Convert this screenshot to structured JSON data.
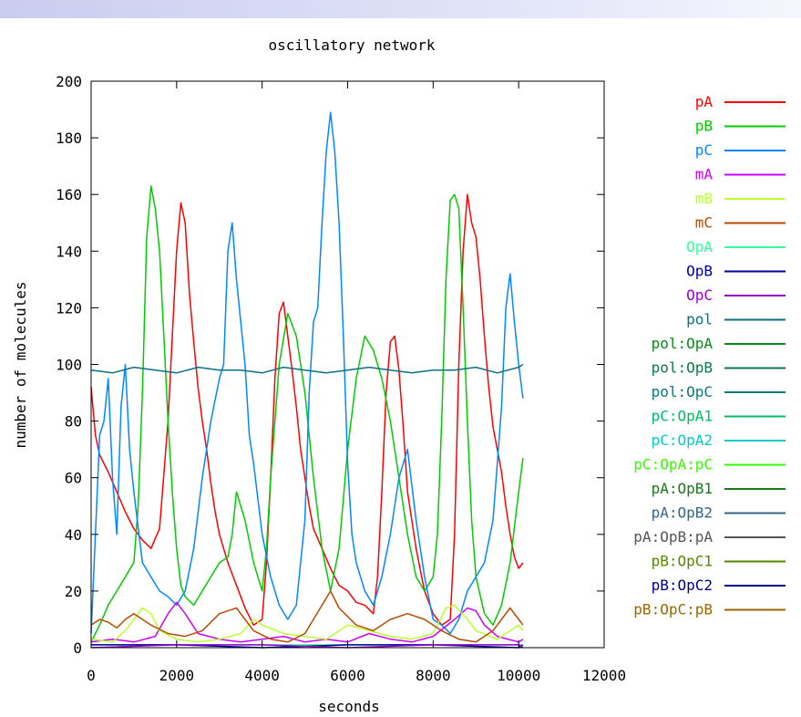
{
  "chart_data": {
    "type": "line",
    "title": "oscillatory network",
    "xlabel": "seconds",
    "ylabel": "number of molecules",
    "xlim": [
      0,
      12000
    ],
    "ylim": [
      0,
      200
    ],
    "xticks": [
      0,
      2000,
      4000,
      6000,
      8000,
      10000,
      12000
    ],
    "yticks": [
      0,
      20,
      40,
      60,
      80,
      100,
      120,
      140,
      160,
      180,
      200
    ],
    "grid": false,
    "legend_position": "right",
    "series": [
      {
        "name": "pA",
        "color": "#ff0000",
        "x": [
          0,
          100,
          200,
          400,
          600,
          800,
          1000,
          1200,
          1400,
          1600,
          1800,
          1900,
          2000,
          2100,
          2200,
          2300,
          2400,
          2500,
          2600,
          2700,
          2800,
          2900,
          3000,
          3100,
          3200,
          3400,
          3600,
          3800,
          4000,
          4100,
          4200,
          4300,
          4400,
          4500,
          4600,
          4700,
          4800,
          4900,
          5000,
          5100,
          5200,
          5400,
          5600,
          5800,
          6000,
          6200,
          6400,
          6600,
          6700,
          6800,
          6900,
          7000,
          7100,
          7200,
          7300,
          7400,
          7600,
          7800,
          8000,
          8200,
          8400,
          8500,
          8600,
          8700,
          8800,
          8900,
          9000,
          9100,
          9200,
          9300,
          9400,
          9500,
          9600,
          9700,
          9800,
          9900,
          10000,
          10100
        ],
        "y": [
          92,
          75,
          68,
          62,
          55,
          48,
          42,
          38,
          35,
          42,
          80,
          110,
          140,
          157,
          150,
          125,
          108,
          92,
          80,
          70,
          58,
          48,
          40,
          35,
          30,
          22,
          14,
          8,
          10,
          30,
          60,
          95,
          118,
          122,
          110,
          98,
          85,
          70,
          60,
          50,
          42,
          35,
          28,
          22,
          20,
          16,
          15,
          12,
          25,
          55,
          90,
          108,
          110,
          98,
          78,
          55,
          35,
          20,
          12,
          8,
          10,
          40,
          100,
          140,
          160,
          150,
          145,
          130,
          110,
          92,
          78,
          70,
          62,
          50,
          40,
          32,
          28,
          30
        ]
      },
      {
        "name": "pB",
        "color": "#00cc00",
        "x": [
          0,
          200,
          400,
          600,
          800,
          1000,
          1100,
          1200,
          1300,
          1400,
          1500,
          1600,
          1700,
          1800,
          1900,
          2000,
          2100,
          2200,
          2400,
          2600,
          2800,
          3000,
          3200,
          3300,
          3400,
          3600,
          3800,
          4000,
          4100,
          4200,
          4400,
          4600,
          4800,
          5000,
          5200,
          5400,
          5600,
          5800,
          6000,
          6200,
          6400,
          6600,
          6800,
          7000,
          7200,
          7400,
          7600,
          7800,
          8000,
          8100,
          8200,
          8300,
          8400,
          8500,
          8600,
          8700,
          8800,
          8900,
          9000,
          9200,
          9400,
          9600,
          9800,
          10000,
          10100
        ],
        "y": [
          2,
          8,
          15,
          20,
          25,
          30,
          50,
          90,
          145,
          163,
          155,
          140,
          110,
          80,
          55,
          35,
          22,
          18,
          15,
          20,
          25,
          30,
          32,
          40,
          55,
          45,
          30,
          20,
          35,
          60,
          100,
          118,
          110,
          90,
          60,
          35,
          20,
          35,
          70,
          95,
          110,
          105,
          95,
          80,
          60,
          40,
          25,
          20,
          25,
          40,
          80,
          130,
          158,
          160,
          155,
          120,
          80,
          45,
          25,
          12,
          8,
          15,
          30,
          55,
          67
        ]
      },
      {
        "name": "pC",
        "color": "#0088ff",
        "x": [
          0,
          100,
          200,
          300,
          400,
          500,
          600,
          700,
          800,
          900,
          1000,
          1200,
          1400,
          1600,
          1800,
          2000,
          2200,
          2400,
          2600,
          2800,
          3000,
          3100,
          3200,
          3300,
          3400,
          3500,
          3600,
          3700,
          3800,
          4000,
          4200,
          4400,
          4600,
          4800,
          5000,
          5100,
          5200,
          5300,
          5400,
          5500,
          5600,
          5700,
          5800,
          5900,
          6000,
          6100,
          6200,
          6400,
          6600,
          6800,
          7000,
          7200,
          7400,
          7600,
          7800,
          8000,
          8200,
          8400,
          8600,
          8800,
          9000,
          9200,
          9400,
          9600,
          9700,
          9800,
          9900,
          10000,
          10100
        ],
        "y": [
          5,
          40,
          75,
          80,
          95,
          60,
          40,
          85,
          100,
          70,
          55,
          30,
          25,
          20,
          18,
          15,
          20,
          35,
          60,
          80,
          95,
          100,
          140,
          150,
          130,
          115,
          100,
          75,
          65,
          40,
          25,
          15,
          10,
          15,
          45,
          90,
          115,
          120,
          150,
          175,
          189,
          175,
          150,
          110,
          65,
          40,
          30,
          20,
          15,
          25,
          40,
          60,
          70,
          45,
          25,
          10,
          8,
          5,
          10,
          20,
          25,
          30,
          45,
          85,
          120,
          132,
          115,
          100,
          88
        ]
      },
      {
        "name": "pol",
        "color": "#0b6f85",
        "x": [
          0,
          500,
          1000,
          1500,
          2000,
          2500,
          3000,
          3500,
          4000,
          4500,
          5000,
          5500,
          6000,
          6500,
          7000,
          7500,
          8000,
          8500,
          9000,
          9500,
          10000,
          10100
        ],
        "y": [
          98,
          97,
          99,
          98,
          97,
          99,
          98,
          98,
          97,
          99,
          98,
          97,
          98,
          99,
          98,
          97,
          98,
          98,
          99,
          97,
          99,
          100
        ]
      },
      {
        "name": "mA",
        "color": "#cc00ff",
        "x": [
          0,
          500,
          1000,
          1500,
          1800,
          2000,
          2200,
          2500,
          3000,
          3500,
          4000,
          4500,
          5000,
          5500,
          6000,
          6500,
          7000,
          7500,
          8000,
          8500,
          8800,
          9000,
          9200,
          9500,
          10000,
          10100
        ],
        "y": [
          2,
          3,
          2,
          4,
          12,
          16,
          12,
          5,
          3,
          2,
          3,
          4,
          2,
          3,
          2,
          5,
          3,
          2,
          4,
          10,
          14,
          13,
          8,
          4,
          2,
          3
        ]
      },
      {
        "name": "mB",
        "color": "#bbff33",
        "x": [
          0,
          500,
          800,
          1000,
          1200,
          1400,
          1600,
          2000,
          2500,
          3000,
          3500,
          3800,
          4000,
          4500,
          5000,
          5500,
          6000,
          6500,
          7000,
          7500,
          8000,
          8300,
          8500,
          8800,
          9000,
          9500,
          10000,
          10100
        ],
        "y": [
          3,
          2,
          6,
          10,
          14,
          12,
          6,
          3,
          2,
          3,
          5,
          10,
          8,
          5,
          4,
          3,
          8,
          6,
          4,
          3,
          5,
          14,
          15,
          10,
          6,
          3,
          8,
          6
        ]
      },
      {
        "name": "mC",
        "color": "#b84a00",
        "x": [
          0,
          200,
          400,
          600,
          800,
          1000,
          1400,
          1800,
          2200,
          2600,
          3000,
          3400,
          3600,
          3800,
          4200,
          4600,
          5000,
          5400,
          5600,
          5800,
          6200,
          6600,
          7000,
          7400,
          7800,
          8200,
          8600,
          9000,
          9400,
          9800,
          10000,
          10100
        ],
        "y": [
          8,
          10,
          9,
          7,
          10,
          12,
          8,
          5,
          4,
          6,
          12,
          14,
          10,
          6,
          3,
          2,
          5,
          15,
          20,
          14,
          8,
          6,
          10,
          12,
          10,
          6,
          3,
          2,
          6,
          14,
          10,
          8
        ]
      },
      {
        "name": "OpA",
        "color": "#33ff99",
        "x": [
          0,
          2000,
          4000,
          6000,
          8000,
          10000,
          10100
        ],
        "y": [
          1,
          1,
          1,
          1,
          1,
          1,
          1
        ]
      },
      {
        "name": "OpB",
        "color": "#000099",
        "x": [
          0,
          2000,
          4000,
          6000,
          8000,
          10000,
          10100
        ],
        "y": [
          1,
          1,
          0,
          1,
          1,
          0,
          1
        ]
      },
      {
        "name": "OpC",
        "color": "#9900cc",
        "x": [
          0,
          2000,
          4000,
          6000,
          8000,
          10000,
          10100
        ],
        "y": [
          0,
          1,
          1,
          0,
          1,
          1,
          0
        ]
      }
    ],
    "legend": [
      {
        "name": "pA",
        "color": "#ff0000"
      },
      {
        "name": "pB",
        "color": "#00cc00"
      },
      {
        "name": "pC",
        "color": "#0088ff"
      },
      {
        "name": "mA",
        "color": "#cc00ff"
      },
      {
        "name": "mB",
        "color": "#bbff33"
      },
      {
        "name": "mC",
        "color": "#b84a00"
      },
      {
        "name": "OpA",
        "color": "#33ff99"
      },
      {
        "name": "OpB",
        "color": "#000099"
      },
      {
        "name": "OpC",
        "color": "#9900cc"
      },
      {
        "name": "pol",
        "color": "#0b6f85"
      },
      {
        "name": "pol:OpA",
        "color": "#0a8a1a"
      },
      {
        "name": "pol:OpB",
        "color": "#0a7a4a"
      },
      {
        "name": "pol:OpC",
        "color": "#0a7a7a"
      },
      {
        "name": "pC:OpA1",
        "color": "#00bb66"
      },
      {
        "name": "pC:OpA2",
        "color": "#00cccc"
      },
      {
        "name": "pC:OpA:pC",
        "color": "#33ff00"
      },
      {
        "name": "pA:OpB1",
        "color": "#1a7a1a"
      },
      {
        "name": "pA:OpB2",
        "color": "#336688"
      },
      {
        "name": "pA:OpB:pA",
        "color": "#555555"
      },
      {
        "name": "pB:OpC1",
        "color": "#558800"
      },
      {
        "name": "pB:OpC2",
        "color": "#000088"
      },
      {
        "name": "pB:OpC:pB",
        "color": "#996600"
      }
    ]
  }
}
